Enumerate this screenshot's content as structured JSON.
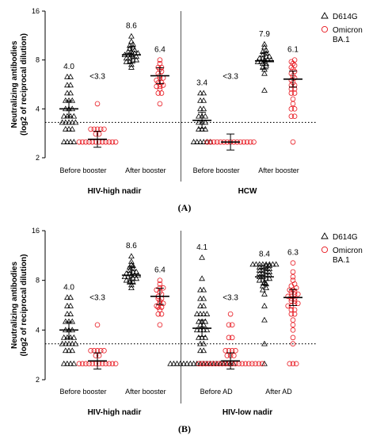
{
  "colors": {
    "d614g": "#000000",
    "omicron": "#e8141c",
    "axis": "#000000"
  },
  "legend": {
    "d614g": "D614G",
    "omicron_line1": "Omicron",
    "omicron_line2": "BA.1"
  },
  "chart_data": [
    {
      "type": "scatter",
      "panel_label": "(A)",
      "ylabel_line1": "Neutralizing antibodies",
      "ylabel_line2": "(log2 of reciprocal dilution)",
      "yscale": "log2",
      "ylim": [
        2,
        16
      ],
      "yticks": [
        2,
        4,
        8,
        16
      ],
      "threshold": 3.3,
      "groups": [
        "HIV-high nadir",
        "HCW"
      ],
      "categories": [
        "Before booster",
        "After booster",
        "Before booster",
        "After booster"
      ],
      "series": [
        {
          "name": "D614G",
          "marker": "triangle",
          "color": "#000000",
          "clusters": [
            {
              "category": 0,
              "mean": 4.0,
              "label": "4.0",
              "values": [
                2.5,
                2.5,
                2.5,
                2.5,
                3.0,
                3.0,
                3.0,
                3.3,
                3.3,
                3.3,
                3.3,
                3.3,
                3.6,
                3.6,
                3.6,
                3.6,
                4.0,
                4.0,
                4.0,
                4.5,
                4.5,
                4.5,
                5.0,
                5.0,
                5.6,
                5.6,
                6.3,
                6.3
              ]
            },
            {
              "category": 1,
              "mean": 8.6,
              "label": "8.6",
              "values": [
                7.2,
                7.5,
                7.8,
                7.8,
                8.0,
                8.0,
                8.2,
                8.2,
                8.4,
                8.4,
                8.6,
                8.6,
                8.6,
                8.8,
                8.8,
                9.0,
                9.0,
                9.2,
                9.4,
                9.6,
                9.8,
                10.0,
                10.4,
                11.2
              ]
            },
            {
              "category": 2,
              "mean": 3.4,
              "label": "3.4",
              "values": [
                2.5,
                2.5,
                2.5,
                2.5,
                2.5,
                2.5,
                3.0,
                3.0,
                3.0,
                3.3,
                3.3,
                3.3,
                3.6,
                3.6,
                3.6,
                4.0,
                4.0,
                4.5,
                4.5,
                5.0,
                5.0
              ]
            },
            {
              "category": 3,
              "mean": 7.9,
              "label": "7.9",
              "values": [
                5.2,
                6.6,
                7.0,
                7.2,
                7.4,
                7.6,
                7.6,
                7.8,
                7.8,
                8.0,
                8.0,
                8.0,
                8.2,
                8.2,
                8.4,
                8.4,
                8.6,
                8.8,
                9.0,
                9.2,
                9.6,
                10.0
              ]
            }
          ]
        },
        {
          "name": "Omicron BA.1",
          "marker": "circle",
          "color": "#e8141c",
          "clusters": [
            {
              "category": 0,
              "mean": 2.6,
              "label": "<3.3",
              "values": [
                2.5,
                2.5,
                2.5,
                2.5,
                2.5,
                2.5,
                2.5,
                2.5,
                2.5,
                2.5,
                2.5,
                2.5,
                2.8,
                2.8,
                3.0,
                3.0,
                3.0,
                3.0,
                3.0,
                4.3
              ]
            },
            {
              "category": 1,
              "mean": 6.4,
              "label": "6.4",
              "values": [
                4.3,
                5.0,
                5.0,
                5.3,
                5.5,
                5.5,
                5.6,
                5.8,
                5.8,
                6.0,
                6.2,
                6.2,
                6.4,
                6.6,
                6.8,
                7.0,
                7.2,
                7.2,
                7.6,
                8.0
              ]
            },
            {
              "category": 2,
              "mean": 2.5,
              "label": "<3.3",
              "values": [
                2.5,
                2.5,
                2.5,
                2.5,
                2.5,
                2.5,
                2.5,
                2.5,
                2.5,
                2.5,
                2.5,
                2.5,
                2.5,
                2.5,
                2.5
              ]
            },
            {
              "category": 3,
              "mean": 6.1,
              "label": "6.1",
              "values": [
                2.5,
                3.6,
                3.6,
                4.0,
                4.0,
                4.3,
                4.6,
                5.0,
                5.0,
                5.3,
                5.3,
                5.6,
                5.6,
                5.8,
                6.0,
                6.2,
                6.4,
                6.6,
                6.8,
                7.0,
                7.2,
                7.4,
                7.6,
                7.8,
                8.0
              ]
            }
          ]
        }
      ]
    },
    {
      "type": "scatter",
      "panel_label": "(B)",
      "ylabel_line1": "Neutralizing antibodies",
      "ylabel_line2": "(log2 of reciprocal dilution)",
      "yscale": "log2",
      "ylim": [
        2,
        16
      ],
      "yticks": [
        2,
        4,
        8,
        16
      ],
      "threshold": 3.3,
      "groups": [
        "HIV-high nadir",
        "HIV-low nadir"
      ],
      "categories": [
        "Before booster",
        "After booster",
        "Before AD",
        "After AD"
      ],
      "series": [
        {
          "name": "D614G",
          "marker": "triangle",
          "color": "#000000",
          "clusters": [
            {
              "category": 0,
              "mean": 4.0,
              "label": "4.0",
              "values": [
                2.5,
                2.5,
                2.5,
                2.5,
                3.0,
                3.0,
                3.0,
                3.3,
                3.3,
                3.3,
                3.3,
                3.3,
                3.6,
                3.6,
                3.6,
                3.6,
                4.0,
                4.0,
                4.0,
                4.5,
                4.5,
                4.5,
                5.0,
                5.0,
                5.6,
                5.6,
                6.3,
                6.3
              ]
            },
            {
              "category": 1,
              "mean": 8.6,
              "label": "8.6",
              "values": [
                7.2,
                7.5,
                7.8,
                7.8,
                8.0,
                8.0,
                8.2,
                8.2,
                8.4,
                8.4,
                8.6,
                8.6,
                8.6,
                8.8,
                8.8,
                9.0,
                9.0,
                9.2,
                9.4,
                9.6,
                9.8,
                10.0,
                10.4,
                11.2
              ]
            },
            {
              "category": 2,
              "mean": 4.1,
              "label": "4.1",
              "values": [
                2.5,
                2.5,
                2.5,
                2.5,
                2.5,
                2.5,
                2.5,
                2.5,
                2.5,
                2.5,
                2.5,
                2.5,
                2.5,
                2.5,
                2.5,
                2.5,
                2.5,
                2.5,
                2.5,
                2.5,
                3.0,
                3.0,
                3.3,
                3.3,
                3.6,
                3.6,
                3.6,
                4.0,
                4.0,
                4.0,
                4.0,
                4.3,
                4.3,
                4.5,
                4.5,
                4.5,
                5.0,
                5.0,
                5.0,
                5.0,
                5.6,
                5.6,
                6.2,
                6.2,
                7.0,
                7.0,
                8.2,
                11.0
              ]
            },
            {
              "category": 3,
              "mean": 8.4,
              "label": "8.4",
              "values": [
                2.5,
                3.3,
                4.6,
                5.6,
                6.6,
                7.0,
                7.2,
                7.4,
                7.6,
                7.8,
                8.0,
                8.0,
                8.2,
                8.2,
                8.4,
                8.4,
                8.6,
                8.6,
                8.8,
                8.8,
                9.0,
                9.0,
                9.2,
                9.2,
                9.4,
                9.4,
                9.6,
                9.6,
                9.8,
                9.8,
                10.0,
                10.0,
                10.0,
                10.0,
                10.0,
                10.0,
                10.0,
                10.0
              ]
            }
          ]
        },
        {
          "name": "Omicron BA.1",
          "marker": "circle",
          "color": "#e8141c",
          "clusters": [
            {
              "category": 0,
              "mean": 2.6,
              "label": "<3.3",
              "values": [
                2.5,
                2.5,
                2.5,
                2.5,
                2.5,
                2.5,
                2.5,
                2.5,
                2.5,
                2.5,
                2.5,
                2.5,
                2.8,
                2.8,
                3.0,
                3.0,
                3.0,
                3.0,
                3.0,
                4.3
              ]
            },
            {
              "category": 1,
              "mean": 6.4,
              "label": "6.4",
              "values": [
                4.3,
                5.0,
                5.0,
                5.3,
                5.5,
                5.5,
                5.6,
                5.8,
                5.8,
                6.0,
                6.2,
                6.2,
                6.4,
                6.6,
                6.8,
                7.0,
                7.2,
                7.2,
                7.6,
                8.0
              ]
            },
            {
              "category": 2,
              "mean": 2.6,
              "label": "<3.3",
              "values": [
                2.5,
                2.5,
                2.5,
                2.5,
                2.5,
                2.5,
                2.5,
                2.5,
                2.5,
                2.5,
                2.5,
                2.5,
                2.5,
                2.5,
                2.5,
                2.5,
                2.5,
                2.5,
                2.5,
                2.5,
                2.8,
                2.8,
                2.8,
                3.0,
                3.0,
                3.0,
                3.0,
                3.6,
                3.6,
                4.3,
                4.3,
                5.0
              ]
            },
            {
              "category": 3,
              "mean": 6.3,
              "label": "6.3",
              "values": [
                2.5,
                2.5,
                2.5,
                3.3,
                3.6,
                4.0,
                4.3,
                4.6,
                5.0,
                5.0,
                5.3,
                5.3,
                5.6,
                5.6,
                5.8,
                5.8,
                6.0,
                6.0,
                6.2,
                6.2,
                6.4,
                6.4,
                6.6,
                6.6,
                6.8,
                6.8,
                7.0,
                7.0,
                7.2,
                7.4,
                7.6,
                8.0,
                8.4,
                9.0,
                10.2
              ]
            }
          ]
        }
      ]
    }
  ]
}
